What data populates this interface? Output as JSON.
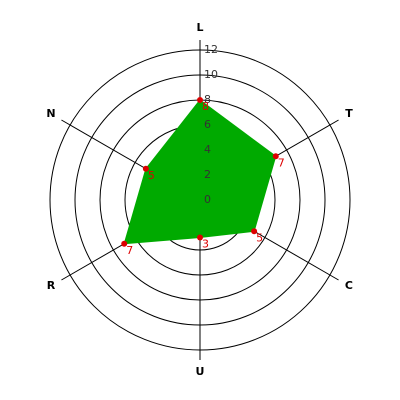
{
  "chart_data": {
    "type": "radar",
    "categories": [
      "L",
      "T",
      "C",
      "U",
      "R",
      "N"
    ],
    "values": [
      8,
      7,
      5,
      3,
      7,
      5
    ],
    "color": "#00aa00",
    "point_color": "#dd0000",
    "ylim": [
      0,
      12
    ],
    "yticks": [
      0,
      2,
      4,
      6,
      8,
      10,
      12
    ]
  }
}
